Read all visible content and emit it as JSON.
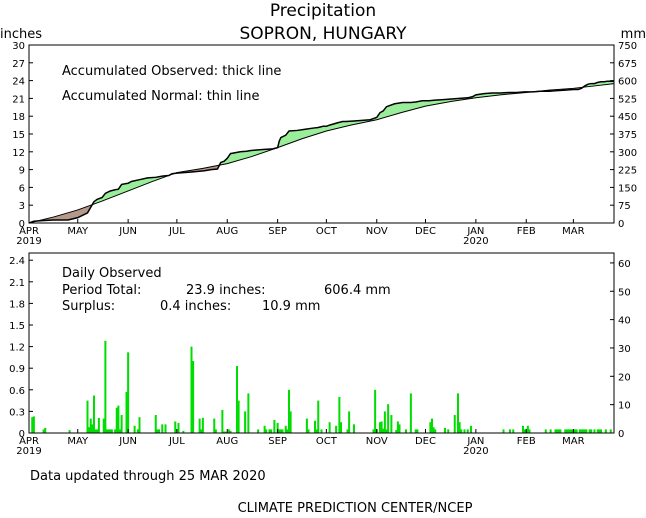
{
  "header": {
    "title": "Precipitation",
    "location": "SOPRON, HUNGARY",
    "unit_left": "inches",
    "unit_right": "mm"
  },
  "footer": {
    "updated": "Data updated through 25 MAR 2020",
    "credit": "CLIMATE PREDICTION CENTER/NCEP"
  },
  "colors": {
    "surplus": "#99ee99",
    "deficit": "#b5988a",
    "daily_bar": "#00dd00",
    "axis": "#000000"
  },
  "chart_data": [
    {
      "type": "line",
      "name": "accumulated",
      "notes": [
        "Accumulated Observed: thick line",
        "Accumulated Normal: thin line"
      ],
      "x_unit": "day index from 1 APR 2019",
      "xlim": [
        0,
        360
      ],
      "x_ticks": [
        {
          "x": 0,
          "label": "APR",
          "year": "2019"
        },
        {
          "x": 30,
          "label": "MAY"
        },
        {
          "x": 61,
          "label": "JUN"
        },
        {
          "x": 91,
          "label": "JUL"
        },
        {
          "x": 122,
          "label": "AUG"
        },
        {
          "x": 153,
          "label": "SEP"
        },
        {
          "x": 183,
          "label": "OCT"
        },
        {
          "x": 214,
          "label": "NOV"
        },
        {
          "x": 244,
          "label": "DEC"
        },
        {
          "x": 275,
          "label": "JAN",
          "year": "2020"
        },
        {
          "x": 306,
          "label": "FEB"
        },
        {
          "x": 335,
          "label": "MAR"
        }
      ],
      "ylim_inches": [
        0,
        30
      ],
      "y_ticks_inches": [
        0,
        3,
        6,
        9,
        12,
        15,
        18,
        21,
        24,
        27,
        30
      ],
      "ylim_mm": [
        0,
        750
      ],
      "y_ticks_mm": [
        0,
        75,
        150,
        225,
        300,
        375,
        450,
        525,
        600,
        675,
        750
      ],
      "observed": {
        "x": [
          0,
          3,
          8,
          15,
          24,
          30,
          36,
          40,
          42,
          45,
          47,
          50,
          53,
          55,
          57,
          61,
          63,
          68,
          73,
          78,
          82,
          86,
          88,
          91,
          95,
          100,
          104,
          108,
          112,
          116,
          118,
          120,
          122,
          124,
          126,
          128,
          130,
          134,
          136,
          140,
          145,
          150,
          153,
          154,
          155,
          158,
          160,
          165,
          170,
          175,
          178,
          181,
          183,
          185,
          190,
          193,
          195,
          200,
          205,
          210,
          212,
          214,
          216,
          218,
          220,
          225,
          230,
          235,
          238,
          240,
          242,
          244,
          246,
          250,
          255,
          260,
          265,
          270,
          273,
          275,
          280,
          285,
          290,
          295,
          300,
          305,
          310,
          315,
          320,
          325,
          330,
          335,
          338,
          340,
          342,
          344,
          346,
          348,
          350,
          352,
          354,
          356,
          358,
          360
        ],
        "y": [
          0,
          0.3,
          0.4,
          0.5,
          0.5,
          0.9,
          1.7,
          3.6,
          4.0,
          4.3,
          5.0,
          5.4,
          5.6,
          5.7,
          6.5,
          6.7,
          7.0,
          7.3,
          7.6,
          7.7,
          7.9,
          8.0,
          8.3,
          8.4,
          8.5,
          8.6,
          8.7,
          8.8,
          9.0,
          9.1,
          10.2,
          10.4,
          10.9,
          11.7,
          11.8,
          11.9,
          12.0,
          12.1,
          12.2,
          12.3,
          12.4,
          12.5,
          12.7,
          13.8,
          14.4,
          14.8,
          15.5,
          15.6,
          15.8,
          16.0,
          16.1,
          16.3,
          16.3,
          16.5,
          16.9,
          17.1,
          17.1,
          17.2,
          17.3,
          17.4,
          17.6,
          17.8,
          18.6,
          18.9,
          19.6,
          20.1,
          20.3,
          20.3,
          20.4,
          20.5,
          20.6,
          20.6,
          20.6,
          20.7,
          20.8,
          20.9,
          21.0,
          21.1,
          21.3,
          21.6,
          21.8,
          21.9,
          21.9,
          22.0,
          22.0,
          22.1,
          22.1,
          22.2,
          22.2,
          22.3,
          22.4,
          22.5,
          22.5,
          22.7,
          23.1,
          23.4,
          23.5,
          23.5,
          23.7,
          23.8,
          23.8,
          23.9,
          23.9,
          23.9
        ]
      },
      "normal": {
        "x": [
          0,
          15,
          30,
          45,
          61,
          76,
          91,
          107,
          122,
          137,
          153,
          168,
          183,
          198,
          214,
          229,
          244,
          260,
          275,
          290,
          306,
          320,
          335,
          348,
          360
        ],
        "y": [
          0,
          1.0,
          2.2,
          3.7,
          5.4,
          7.0,
          8.5,
          9.2,
          10.0,
          11.2,
          12.7,
          14.2,
          15.5,
          16.5,
          17.4,
          18.6,
          19.7,
          20.5,
          21.1,
          21.6,
          22.0,
          22.4,
          22.7,
          23.1,
          23.5
        ]
      }
    },
    {
      "type": "bar",
      "name": "daily",
      "notes": [
        "Daily Observed"
      ],
      "period_total": {
        "label": "Period Total:",
        "inches": "23.9 inches:",
        "mm": "606.4 mm"
      },
      "surplus": {
        "label": "Surplus:",
        "inches": "0.4 inches:",
        "mm": "10.9 mm"
      },
      "ylim_inches": [
        0,
        2.5
      ],
      "y_ticks_inches": [
        "0",
        "0.3",
        "0.6",
        "0.9",
        "1.2",
        "1.5",
        "1.8",
        "2.1",
        "2.4"
      ],
      "ylim_mm": [
        0,
        63.5
      ],
      "y_ticks_mm": [
        "0",
        "10",
        "20",
        "30",
        "40",
        "50",
        "60"
      ],
      "x": [
        2,
        3,
        9,
        10,
        25,
        36,
        37,
        38,
        39,
        40,
        41,
        42,
        43,
        46,
        47,
        48,
        49,
        50,
        51,
        53,
        54,
        55,
        56,
        57,
        60,
        61,
        65,
        67,
        68,
        78,
        79,
        80,
        82,
        84,
        90,
        92,
        95,
        100,
        101,
        105,
        106,
        107,
        114,
        115,
        119,
        120,
        121,
        123,
        124,
        128,
        129,
        133,
        135,
        141,
        145,
        146,
        148,
        149,
        151,
        153,
        154,
        155,
        156,
        158,
        159,
        160,
        161,
        171,
        172,
        176,
        177,
        178,
        180,
        185,
        189,
        191,
        192,
        196,
        197,
        200,
        212,
        213,
        214,
        216,
        217,
        218,
        219,
        220,
        221,
        223,
        226,
        227,
        228,
        232,
        235,
        238,
        239,
        247,
        248,
        249,
        250,
        256,
        258,
        262,
        264,
        265,
        266,
        268,
        270,
        272,
        292,
        296,
        298,
        304,
        305,
        306,
        307,
        308,
        318,
        321,
        324,
        325,
        326,
        327,
        330,
        331,
        332,
        333,
        334,
        335,
        336,
        337,
        339,
        340,
        341,
        342,
        343,
        345,
        346,
        348,
        350,
        351,
        352,
        355,
        358
      ],
      "values": [
        0.22,
        0.23,
        0.05,
        0.07,
        0.04,
        0.45,
        0.08,
        0.2,
        0.12,
        0.52,
        0.05,
        0.05,
        0.21,
        0.2,
        1.28,
        0.05,
        0.05,
        0.05,
        0.05,
        0.05,
        0.35,
        0.38,
        0.05,
        0.25,
        0.57,
        1.12,
        0.1,
        0.05,
        0.22,
        0.25,
        0.05,
        0.05,
        0.12,
        0.12,
        0.16,
        0.14,
        0.03,
        1.2,
        1.0,
        0.2,
        0.05,
        0.21,
        0.2,
        0.05,
        0.32,
        0.02,
        0.02,
        0.05,
        0.03,
        0.93,
        0.45,
        0.3,
        0.55,
        0.05,
        0.1,
        0.05,
        0.05,
        0.05,
        0.18,
        0.14,
        0.05,
        0.05,
        0.05,
        0.1,
        0.05,
        0.6,
        0.3,
        0.2,
        0.05,
        0.17,
        0.05,
        0.45,
        0.05,
        0.15,
        0.1,
        0.5,
        0.15,
        0.05,
        0.3,
        0.12,
        0.05,
        0.6,
        0.05,
        0.15,
        0.16,
        0.06,
        0.3,
        0.05,
        0.4,
        0.25,
        0.04,
        0.16,
        0.12,
        0.05,
        0.55,
        0.05,
        0.05,
        0.15,
        0.2,
        0.08,
        0.05,
        0.07,
        0.05,
        0.25,
        0.55,
        0.15,
        0.05,
        0.05,
        0.05,
        0.1,
        0.05,
        0.05,
        0.05,
        0.1,
        0.05,
        0.05,
        0.1,
        0.05,
        0.05,
        0.05,
        0.05,
        0.05,
        0.05,
        0.05,
        0.05,
        0.05,
        0.05,
        0.05,
        0.05,
        0.05,
        0.05,
        0.05,
        0.05,
        0.05,
        0.05,
        0.05,
        0.05,
        0.05,
        0.05,
        0.05,
        0.05,
        0.05,
        0.05,
        0.05,
        0.05
      ]
    }
  ]
}
